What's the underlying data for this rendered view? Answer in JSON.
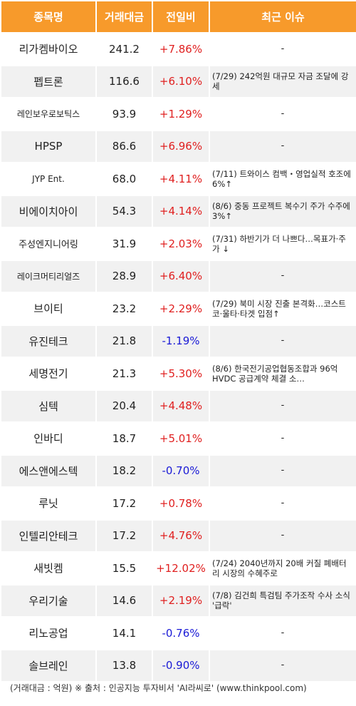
{
  "header": {
    "name": "종목명",
    "volume": "거래대금",
    "change": "전일비",
    "issue": "최근 이슈"
  },
  "rows": [
    {
      "name": "리가켐바이오",
      "volume": "241.2",
      "change": "+7.86%",
      "issue": "-"
    },
    {
      "name": "펩트론",
      "volume": "116.6",
      "change": "+6.10%",
      "issue": "(7/29) 242억원 대규모 자금 조달에 강세"
    },
    {
      "name": "레인보우로보틱스",
      "volume": "93.9",
      "change": "+1.29%",
      "issue": "-"
    },
    {
      "name": "HPSP",
      "volume": "86.6",
      "change": "+6.96%",
      "issue": "-"
    },
    {
      "name": "JYP Ent.",
      "volume": "68.0",
      "change": "+4.11%",
      "issue": "(7/11) 트와이스 컴백・영업실적 호조에 6%↑"
    },
    {
      "name": "비에이치아이",
      "volume": "54.3",
      "change": "+4.14%",
      "issue": "(8/6) 중동 프로젝트 복수기 주가 수주에 3%↑"
    },
    {
      "name": "주성엔지니어링",
      "volume": "31.9",
      "change": "+2.03%",
      "issue": "(7/31) 하반기가 더 나쁘다…목표가·주가 ↓"
    },
    {
      "name": "레이크머티리얼즈",
      "volume": "28.9",
      "change": "+6.40%",
      "issue": "-"
    },
    {
      "name": "브이티",
      "volume": "23.2",
      "change": "+2.29%",
      "issue": "(7/29) 북미 시장 진출 본격화…코스트코·울타·타겟 입점↑"
    },
    {
      "name": "유진테크",
      "volume": "21.8",
      "change": "-1.19%",
      "issue": "-"
    },
    {
      "name": "세명전기",
      "volume": "21.3",
      "change": "+5.30%",
      "issue": "(8/6) 한국전기공업협동조합과 96억 HVDC 공급계약 체결 소…"
    },
    {
      "name": "심텍",
      "volume": "20.4",
      "change": "+4.48%",
      "issue": "-"
    },
    {
      "name": "인바디",
      "volume": "18.7",
      "change": "+5.01%",
      "issue": "-"
    },
    {
      "name": "에스앤에스텍",
      "volume": "18.2",
      "change": "-0.70%",
      "issue": "-"
    },
    {
      "name": "루닛",
      "volume": "17.2",
      "change": "+0.78%",
      "issue": "-"
    },
    {
      "name": "인텔리안테크",
      "volume": "17.2",
      "change": "+4.76%",
      "issue": "-"
    },
    {
      "name": "새빗켐",
      "volume": "15.5",
      "change": "+12.02%",
      "issue": "(7/24) 2040년까지 20배 커질 폐배터리 시장의 수혜주로"
    },
    {
      "name": "우리기술",
      "volume": "14.6",
      "change": "+2.19%",
      "issue": "(7/8) 김건희 특검팀 주가조작 수사 소식 '급락'"
    },
    {
      "name": "리노공업",
      "volume": "14.1",
      "change": "-0.76%",
      "issue": "-"
    },
    {
      "name": "솔브레인",
      "volume": "13.8",
      "change": "-0.90%",
      "issue": "-"
    }
  ],
  "footer": "(거래대금 : 억원) ※ 출처 : 인공지능 투자비서 'AI라씨로' (www.thinkpool.com)",
  "colors": {
    "header_bg": "#f79a2b",
    "up": "#e02020",
    "down": "#1a1ad6",
    "row_alt": "#f1f1f1"
  }
}
